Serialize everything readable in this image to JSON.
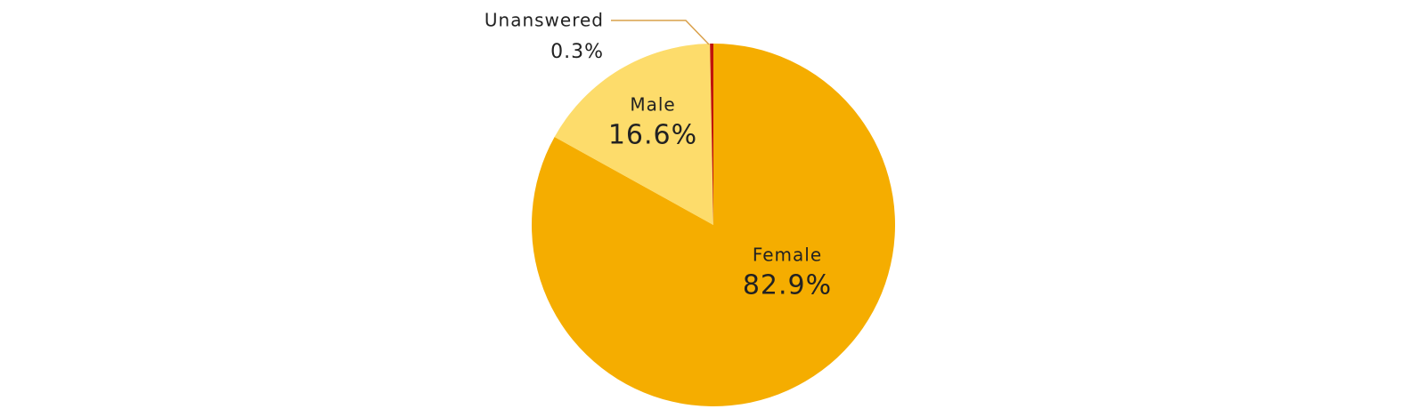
{
  "chart_data": {
    "type": "pie",
    "categories": [
      "Female",
      "Male",
      "Unanswered"
    ],
    "values": [
      82.9,
      16.6,
      0.3
    ],
    "value_labels": [
      "82.9%",
      "16.6%",
      "0.3%"
    ],
    "colors": [
      "#f5ad00",
      "#fddc6b",
      "#c0140c"
    ]
  }
}
